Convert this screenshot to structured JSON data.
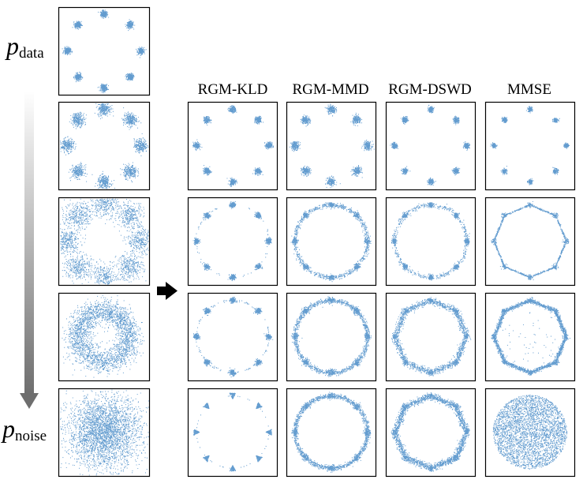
{
  "labels": {
    "p_data": {
      "symbol": "p",
      "subscript": "data"
    },
    "p_noise": {
      "symbol": "p",
      "subscript": "noise"
    }
  },
  "columns": [
    "RGM-KLD",
    "RGM-MMD",
    "RGM-DSWD",
    "MMSE"
  ],
  "colors": {
    "points": "#2f7bbf",
    "frame": "#000000",
    "arrow": "#000000"
  },
  "icons": {
    "time_arrow": "gradient-down-arrow-icon",
    "map_arrow": "right-arrow-icon"
  },
  "left_column": [
    {
      "kind": "mixture",
      "spread": 0.035,
      "points_per_mode": 220
    },
    {
      "kind": "mixture",
      "spread": 0.07,
      "points_per_mode": 260
    },
    {
      "kind": "mixture",
      "spread": 0.14,
      "points_per_mode": 320
    },
    {
      "kind": "ring",
      "radius": 0.55,
      "spread": 0.22,
      "points": 2600
    },
    {
      "kind": "gauss",
      "spread": 0.38,
      "points": 3200
    }
  ],
  "grid": [
    [
      {
        "kind": "mixture",
        "spread": 0.035,
        "points_per_mode": 180
      },
      {
        "kind": "mixture",
        "spread": 0.045,
        "points_per_mode": 180
      },
      {
        "kind": "mixture",
        "spread": 0.03,
        "points_per_mode": 160
      },
      {
        "kind": "mixture",
        "spread": 0.025,
        "points_per_mode": 120
      }
    ],
    [
      {
        "kind": "modes_sparse",
        "spread": 0.03,
        "points_per_mode": 140,
        "ring_points": 60
      },
      {
        "kind": "modes_ring",
        "spread": 0.03,
        "points_per_mode": 100,
        "ring_points": 900
      },
      {
        "kind": "modes_ring",
        "spread": 0.025,
        "points_per_mode": 110,
        "ring_points": 600
      },
      {
        "kind": "octagon_thin",
        "points": 900
      }
    ],
    [
      {
        "kind": "modes_sparse",
        "spread": 0.03,
        "points_per_mode": 150,
        "ring_points": 120
      },
      {
        "kind": "modes_ring",
        "spread": 0.035,
        "points_per_mode": 90,
        "ring_points": 1300
      },
      {
        "kind": "octagon_band",
        "points": 1700
      },
      {
        "kind": "octagon_thick",
        "points": 2200
      }
    ],
    [
      {
        "kind": "triangles",
        "points_per_mode": 140,
        "ring_points": 40
      },
      {
        "kind": "modes_ring",
        "spread": 0.035,
        "points_per_mode": 70,
        "ring_points": 1500
      },
      {
        "kind": "octagon_band",
        "points": 2200
      },
      {
        "kind": "disk",
        "points": 3400
      }
    ]
  ]
}
